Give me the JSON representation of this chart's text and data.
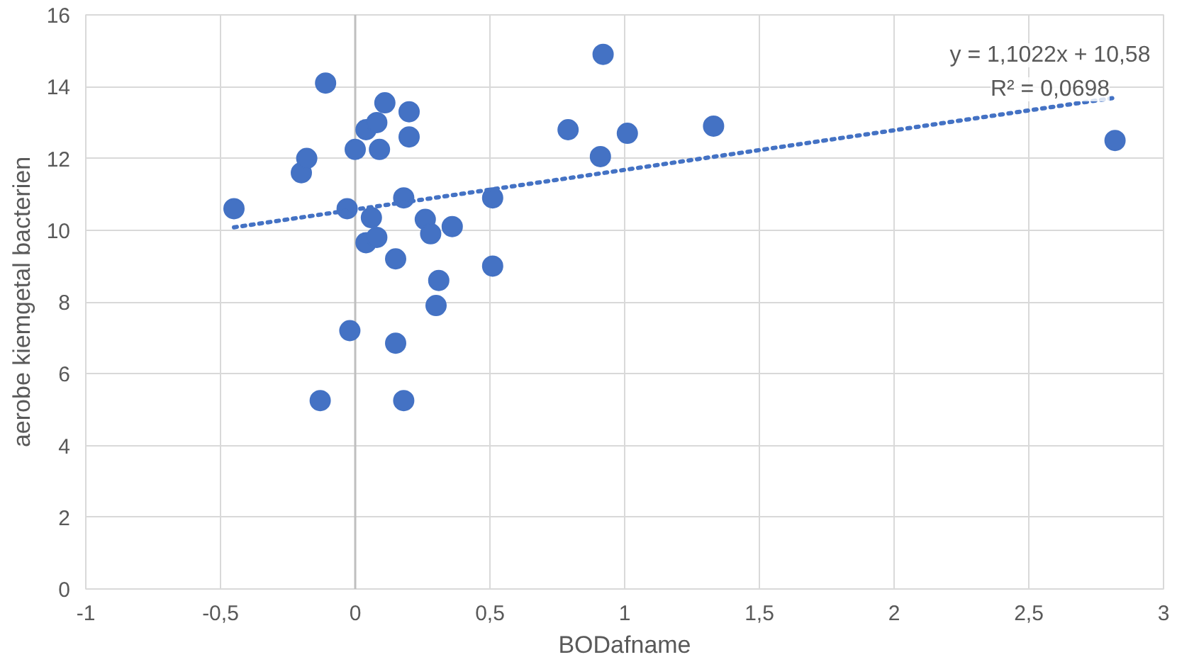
{
  "chart_data": {
    "type": "scatter",
    "xlabel": "BODafname",
    "ylabel": "aerobe kiemgetal bacterien",
    "xlim": [
      -1,
      3
    ],
    "ylim": [
      0,
      16
    ],
    "xticks": [
      {
        "value": -1,
        "label": "-1"
      },
      {
        "value": -0.5,
        "label": "-0,5"
      },
      {
        "value": 0,
        "label": "0"
      },
      {
        "value": 0.5,
        "label": "0,5"
      },
      {
        "value": 1,
        "label": "1"
      },
      {
        "value": 1.5,
        "label": "1,5"
      },
      {
        "value": 2,
        "label": "2"
      },
      {
        "value": 2.5,
        "label": "2,5"
      },
      {
        "value": 3,
        "label": "3"
      }
    ],
    "yticks": [
      0,
      2,
      4,
      6,
      8,
      10,
      12,
      14,
      16
    ],
    "grid": true,
    "marker": "circle",
    "series": [
      {
        "color": "#4472c4",
        "x": [
          -0.45,
          -0.11,
          -0.2,
          -0.18,
          -0.13,
          0,
          -0.02,
          -0.03,
          0.04,
          0.08,
          0.11,
          0.2,
          0.2,
          0.09,
          0.18,
          0.06,
          0.04,
          0.08,
          0.15,
          0.26,
          0.28,
          0.36,
          0.31,
          0.3,
          0.15,
          0.18,
          0.51,
          0.51,
          0.92,
          0.79,
          0.91,
          1.01,
          1.33,
          2.82
        ],
        "values": [
          10.6,
          14.1,
          11.6,
          12.0,
          5.25,
          12.25,
          7.2,
          10.6,
          12.8,
          13.0,
          13.55,
          13.3,
          12.6,
          12.25,
          10.9,
          10.35,
          9.65,
          9.8,
          9.2,
          10.3,
          9.9,
          10.1,
          8.6,
          7.9,
          6.85,
          5.25,
          10.9,
          9.0,
          14.9,
          12.8,
          12.05,
          12.7,
          12.9,
          12.5
        ]
      },
      {
        "type": "line",
        "color": "#4472c4",
        "line_style": "dotted",
        "marker": "none",
        "x": [
          -0.45,
          2.82
        ],
        "values": [
          10.08,
          13.69
        ]
      }
    ],
    "annotations": [
      "y = 1,1022x + 10,58",
      "R² = 0,0698"
    ]
  }
}
